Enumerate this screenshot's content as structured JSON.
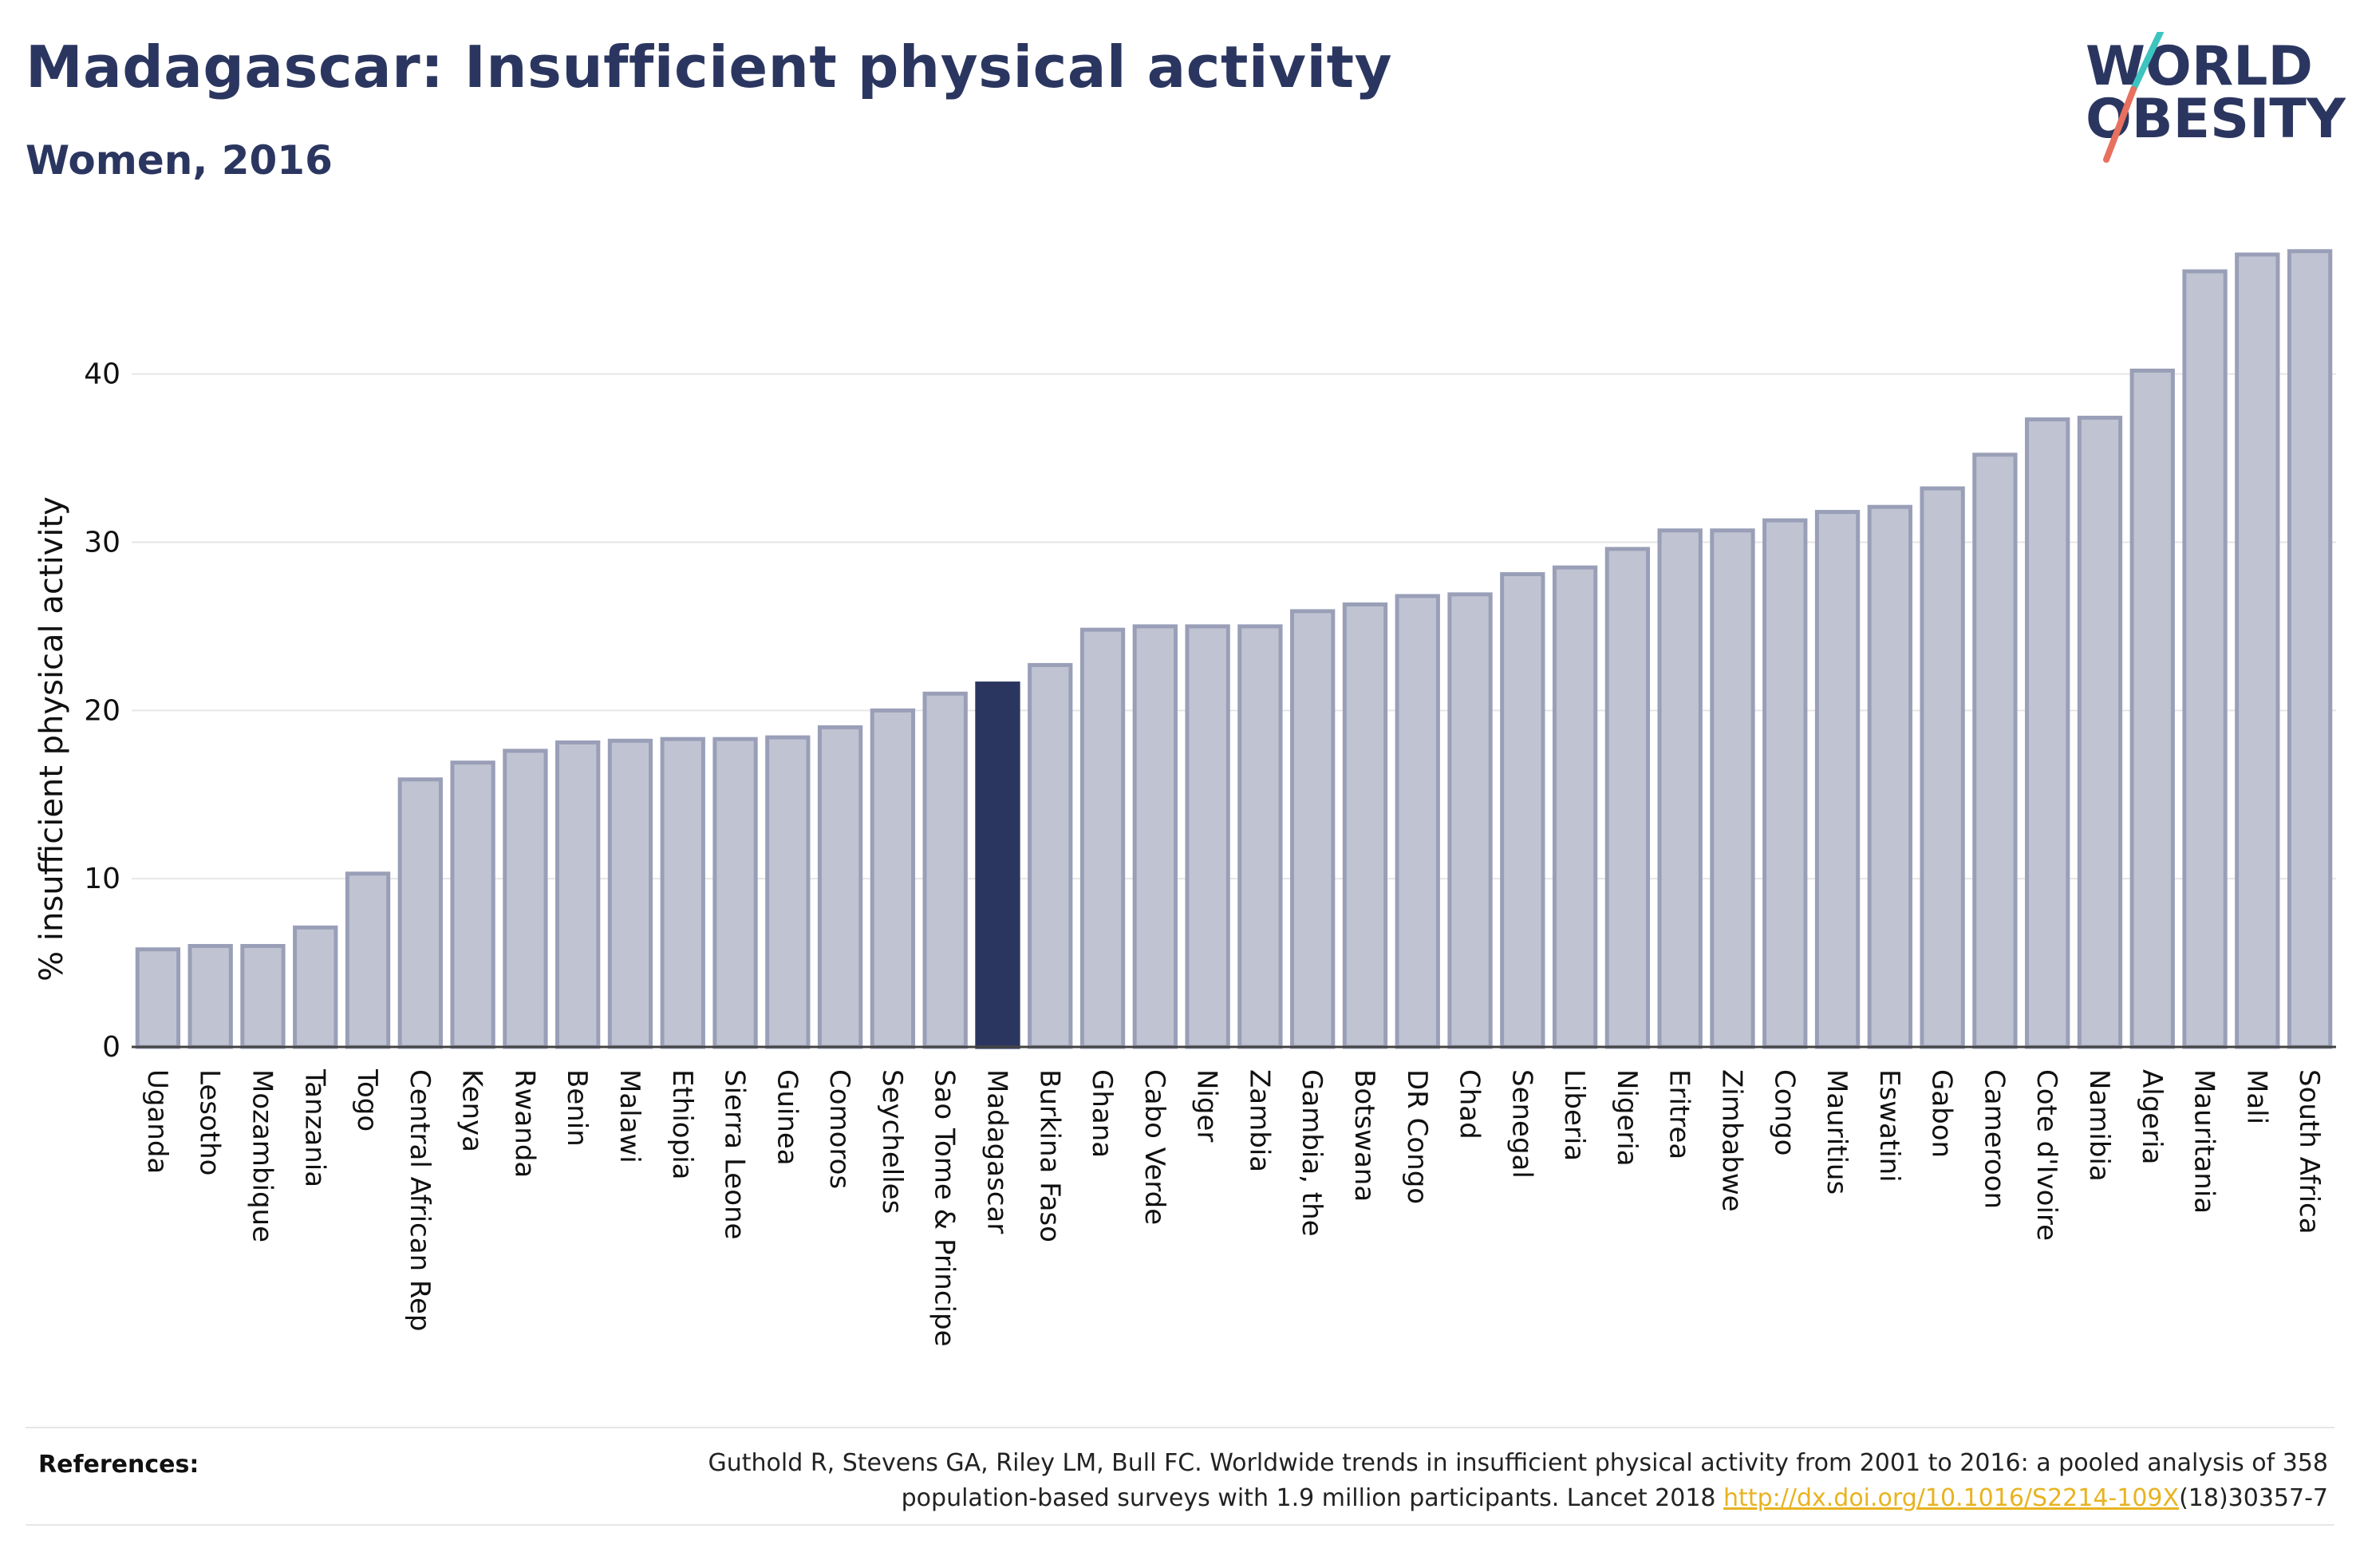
{
  "header": {
    "title": "Madagascar: Insufficient physical activity",
    "subtitle": "Women, 2016"
  },
  "logo": {
    "line1": "WORLD",
    "line2": "OBESITY",
    "text_color": "#2b3660",
    "slash_top_color": "#3ec4c0",
    "slash_bottom_color": "#e8705f"
  },
  "colors": {
    "bar_fill": "#c0c4d2",
    "bar_stroke": "#9a9fb8",
    "highlight_fill": "#2b3660",
    "grid": "#e6e6e6",
    "axis": "#444444"
  },
  "chart_data": {
    "type": "bar",
    "ylabel": "% insufficient physical activity",
    "ylim": [
      0,
      48
    ],
    "yticks": [
      0,
      10,
      20,
      30,
      40
    ],
    "highlight": "Madagascar",
    "grid": true,
    "categories": [
      "Uganda",
      "Lesotho",
      "Mozambique",
      "Tanzania",
      "Togo",
      "Central African Rep",
      "Kenya",
      "Rwanda",
      "Benin",
      "Malawi",
      "Ethiopia",
      "Sierra Leone",
      "Guinea",
      "Comoros",
      "Seychelles",
      "Sao Tome & Principe",
      "Madagascar",
      "Burkina Faso",
      "Ghana",
      "Cabo Verde",
      "Niger",
      "Zambia",
      "Gambia, the",
      "Botswana",
      "DR Congo",
      "Chad",
      "Senegal",
      "Liberia",
      "Nigeria",
      "Eritrea",
      "Zimbabwe",
      "Congo",
      "Mauritius",
      "Eswatini",
      "Gabon",
      "Cameroon",
      "Cote d'Ivoire",
      "Namibia",
      "Algeria",
      "Mauritania",
      "Mali",
      "South Africa"
    ],
    "values": [
      5.8,
      6.0,
      6.0,
      7.1,
      10.3,
      15.9,
      16.9,
      17.6,
      18.1,
      18.2,
      18.3,
      18.3,
      18.4,
      19.0,
      20.0,
      21.0,
      21.6,
      22.7,
      24.8,
      25.0,
      25.0,
      25.0,
      25.9,
      26.3,
      26.8,
      26.9,
      28.1,
      28.5,
      29.6,
      30.7,
      30.7,
      31.3,
      31.8,
      32.1,
      33.2,
      35.2,
      37.3,
      37.4,
      40.2,
      46.1,
      47.1,
      47.3
    ]
  },
  "references": {
    "label": "References:",
    "text_before_link": "Guthold R, Stevens GA, Riley LM, Bull FC. Worldwide trends in insufficient physical activity from 2001 to 2016: a pooled analysis of 358 population-based surveys with 1.9 million participants. Lancet 2018 ",
    "link": "http://dx.doi.org/10.1016/S2214-109X",
    "text_after_link": "(18)30357-7",
    "link_color": "#e8b320"
  }
}
